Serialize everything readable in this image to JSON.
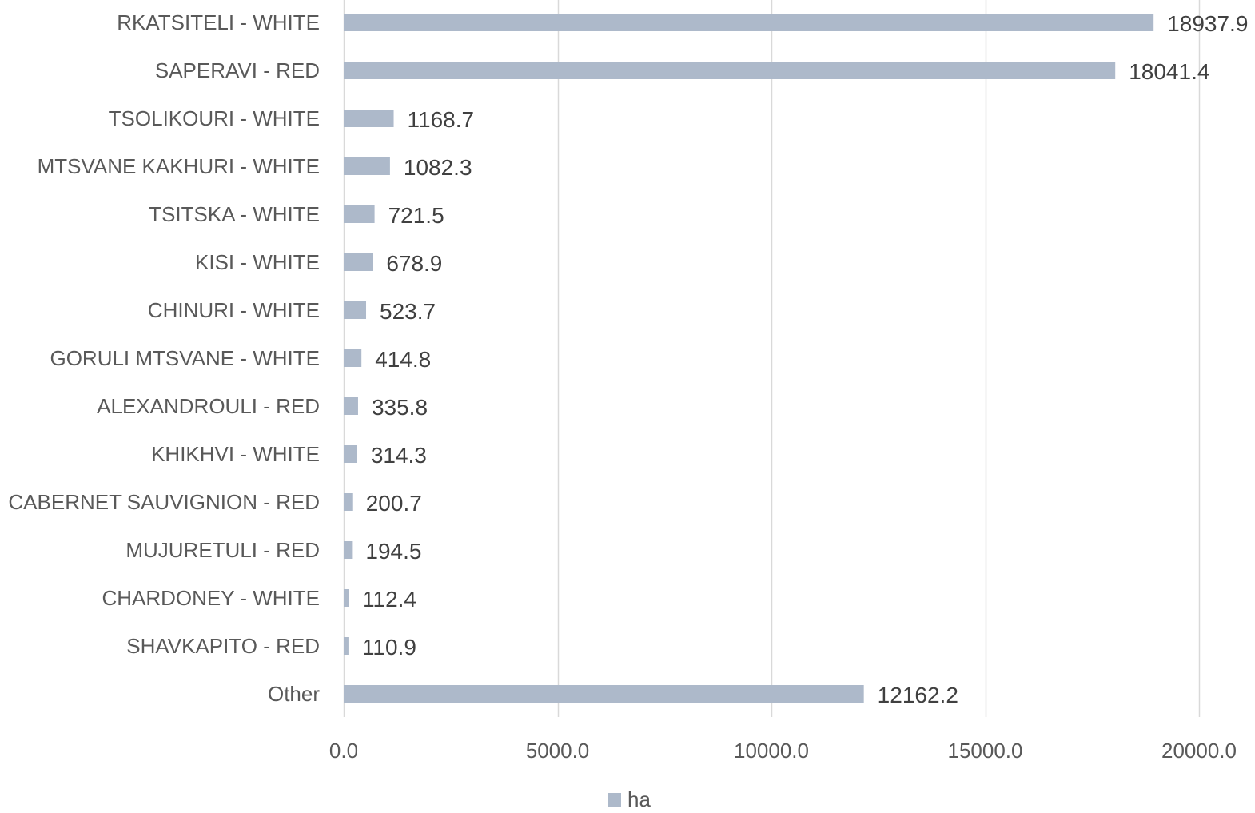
{
  "chart_data": {
    "type": "bar",
    "orientation": "horizontal",
    "categories": [
      "RKATSITELI - WHITE",
      "SAPERAVI - RED",
      "TSOLIKOURI - WHITE",
      "MTSVANE KAKHURI - WHITE",
      "TSITSKA - WHITE",
      "KISI - WHITE",
      "CHINURI - WHITE",
      "GORULI MTSVANE - WHITE",
      "ALEXANDROULI - RED",
      "KHIKHVI - WHITE",
      "CABERNET SAUVIGNION - RED",
      "MUJURETULI - RED",
      "CHARDONEY - WHITE",
      "SHAVKAPITO - RED",
      "Other"
    ],
    "series": [
      {
        "name": "ha",
        "values": [
          18937.9,
          18041.4,
          1168.7,
          1082.3,
          721.5,
          678.9,
          523.7,
          414.8,
          335.8,
          314.3,
          200.7,
          194.5,
          112.4,
          110.9,
          12162.2
        ],
        "value_labels": [
          "18937.9",
          "18041.4",
          "1168.7",
          "1082.3",
          "721.5",
          "678.9",
          "523.7",
          "414.8",
          "335.8",
          "314.3",
          "200.7",
          "194.5",
          "112.4",
          "110.9",
          "12162.2"
        ]
      }
    ],
    "xlim": [
      0,
      20000
    ],
    "xticks": [
      0,
      5000,
      10000,
      15000,
      20000
    ],
    "xtick_labels": [
      "0.0",
      "5000.0",
      "10000.0",
      "15000.0",
      "20000.0"
    ],
    "title": "",
    "xlabel": "",
    "ylabel": "",
    "grid": "vertical",
    "legend": "bottom",
    "colors": {
      "bar": "#adb9ca",
      "grid": "#d9d9d9"
    }
  },
  "legend": {
    "label": "ha"
  }
}
